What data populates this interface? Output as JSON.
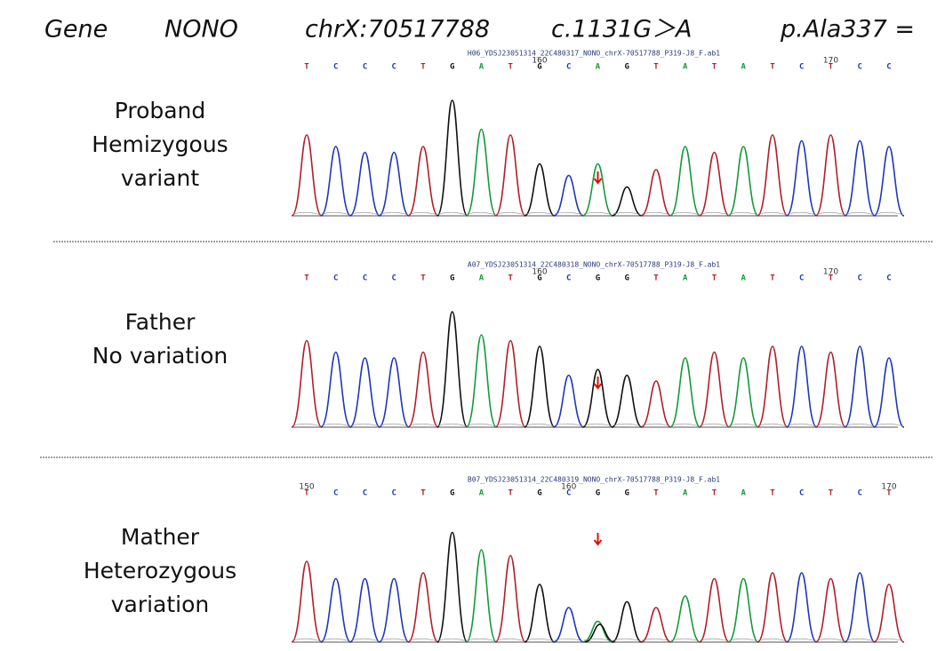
{
  "header": [
    "Gene",
    "NONO",
    "chrX:70517788",
    "c.1131G＞A",
    "p.Ala337 ="
  ],
  "panels": [
    {
      "label": [
        "Proband",
        "Hemizygous",
        "variant"
      ],
      "file": "H06_YDSJ23051314_22C480317_NONO_chrX-70517788_P319-J8_F.ab1",
      "bases": [
        "T",
        "C",
        "C",
        "C",
        "T",
        "G",
        "A",
        "T",
        "G",
        "C",
        "A",
        "G",
        "T",
        "A",
        "T",
        "A",
        "T",
        "C",
        "T",
        "C",
        "C"
      ],
      "numbers": [
        null,
        null,
        null,
        null,
        null,
        null,
        null,
        null,
        "160",
        null,
        null,
        null,
        null,
        null,
        null,
        null,
        null,
        null,
        "170",
        null,
        null
      ]
    },
    {
      "label": [
        "Father",
        "No variation"
      ],
      "file": "A07_YDSJ23051314_22C480318_NONO_chrX-70517788_P319-J8_F.ab1",
      "bases": [
        "T",
        "C",
        "C",
        "C",
        "T",
        "G",
        "A",
        "T",
        "G",
        "C",
        "G",
        "G",
        "T",
        "A",
        "T",
        "A",
        "T",
        "C",
        "T",
        "C",
        "C"
      ],
      "numbers": [
        null,
        null,
        null,
        null,
        null,
        null,
        null,
        null,
        "160",
        null,
        null,
        null,
        null,
        null,
        null,
        null,
        null,
        null,
        "170",
        null,
        null
      ]
    },
    {
      "label": [
        "Mather",
        "Heterozygous",
        "variation"
      ],
      "file": "B07_YDSJ23051314_22C480319_NONO_chrX-70517788_P319-J8_F.ab1",
      "bases": [
        "T",
        "C",
        "C",
        "C",
        "T",
        "G",
        "A",
        "T",
        "G",
        "C",
        "G",
        "G",
        "T",
        "A",
        "T",
        "A",
        "T",
        "C",
        "T",
        "C",
        "T"
      ],
      "numbers": [
        "150",
        null,
        null,
        null,
        null,
        null,
        null,
        null,
        null,
        "160",
        null,
        null,
        null,
        null,
        null,
        null,
        null,
        null,
        null,
        null,
        "170"
      ]
    }
  ]
}
